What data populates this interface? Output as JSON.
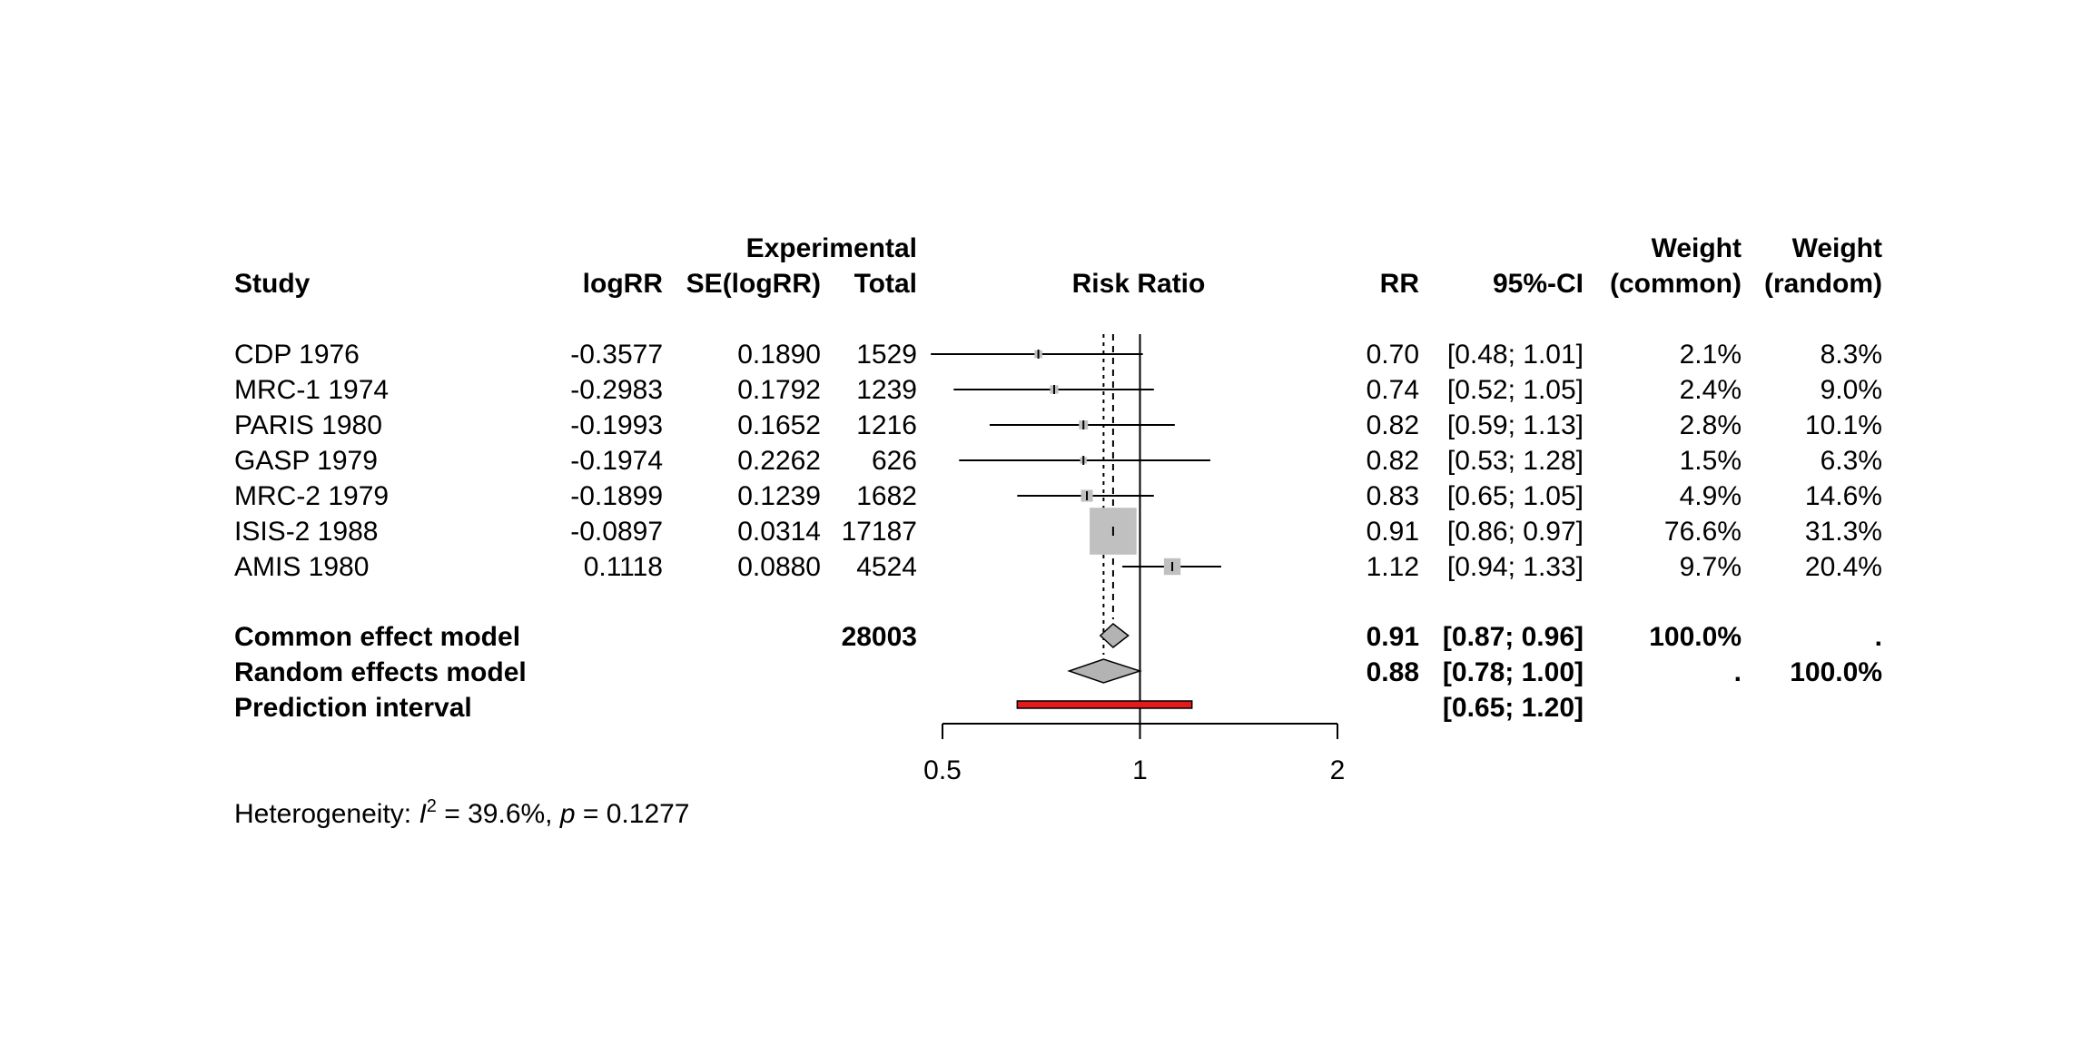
{
  "header": {
    "study": "Study",
    "logrr": "logRR",
    "se": "SE(logRR)",
    "experimental": "Experimental",
    "total": "Total",
    "risk_ratio": "Risk Ratio",
    "rr": "RR",
    "ci": "95%-CI",
    "weight": "Weight",
    "common": "(common)",
    "random": "(random)"
  },
  "studies": [
    {
      "name": "CDP 1976",
      "logrr": "-0.3577",
      "se": "0.1890",
      "total": "1529",
      "rr": "0.70",
      "ci": "[0.48; 1.01]",
      "w_common": "2.1%",
      "w_random": "8.3%"
    },
    {
      "name": "MRC-1 1974",
      "logrr": "-0.2983",
      "se": "0.1792",
      "total": "1239",
      "rr": "0.74",
      "ci": "[0.52; 1.05]",
      "w_common": "2.4%",
      "w_random": "9.0%"
    },
    {
      "name": "PARIS 1980",
      "logrr": "-0.1993",
      "se": "0.1652",
      "total": "1216",
      "rr": "0.82",
      "ci": "[0.59; 1.13]",
      "w_common": "2.8%",
      "w_random": "10.1%"
    },
    {
      "name": "GASP 1979",
      "logrr": "-0.1974",
      "se": "0.2262",
      "total": "626",
      "rr": "0.82",
      "ci": "[0.53; 1.28]",
      "w_common": "1.5%",
      "w_random": "6.3%"
    },
    {
      "name": "MRC-2 1979",
      "logrr": "-0.1899",
      "se": "0.1239",
      "total": "1682",
      "rr": "0.83",
      "ci": "[0.65; 1.05]",
      "w_common": "4.9%",
      "w_random": "14.6%"
    },
    {
      "name": "ISIS-2 1988",
      "logrr": "-0.0897",
      "se": "0.0314",
      "total": "17187",
      "rr": "0.91",
      "ci": "[0.86; 0.97]",
      "w_common": "76.6%",
      "w_random": "31.3%"
    },
    {
      "name": "AMIS 1980",
      "logrr": "0.1118",
      "se": "0.0880",
      "total": "4524",
      "rr": "1.12",
      "ci": "[0.94; 1.33]",
      "w_common": "9.7%",
      "w_random": "20.4%"
    }
  ],
  "summary": {
    "common": {
      "label": "Common effect model",
      "total": "28003",
      "rr": "0.91",
      "ci": "[0.87; 0.96]",
      "w_common": "100.0%",
      "w_random": "."
    },
    "random": {
      "label": "Random effects model",
      "total": "",
      "rr": "0.88",
      "ci": "[0.78; 1.00]",
      "w_common": ".",
      "w_random": "100.0%"
    },
    "prediction": {
      "label": "Prediction interval",
      "ci": "[0.65; 1.20]"
    }
  },
  "heterogeneity": {
    "prefix": "Heterogeneity: ",
    "i2_symbol": "I",
    "i2_sup": "2",
    "i2_value": " = 39.6%, ",
    "p_symbol": "p",
    "p_value": " = 0.1277"
  },
  "colors": {
    "square": "#c0c0c0",
    "diamond": "#b3b3b3",
    "prediction": "#e31a1c"
  },
  "chart_data": {
    "type": "forest",
    "xscale": "log",
    "xlim": [
      0.5,
      2
    ],
    "xticks": [
      0.5,
      1,
      2
    ],
    "tick_labels": [
      "0.5",
      "1",
      "2"
    ],
    "reference_line": 1,
    "studies": [
      {
        "name": "CDP 1976",
        "rr": 0.7,
        "lower": 0.48,
        "upper": 1.01,
        "weight_common": 2.1
      },
      {
        "name": "MRC-1 1974",
        "rr": 0.74,
        "lower": 0.52,
        "upper": 1.05,
        "weight_common": 2.4
      },
      {
        "name": "PARIS 1980",
        "rr": 0.82,
        "lower": 0.59,
        "upper": 1.13,
        "weight_common": 2.8
      },
      {
        "name": "GASP 1979",
        "rr": 0.82,
        "lower": 0.53,
        "upper": 1.28,
        "weight_common": 1.5
      },
      {
        "name": "MRC-2 1979",
        "rr": 0.83,
        "lower": 0.65,
        "upper": 1.05,
        "weight_common": 4.9
      },
      {
        "name": "ISIS-2 1988",
        "rr": 0.91,
        "lower": 0.86,
        "upper": 0.97,
        "weight_common": 76.6
      },
      {
        "name": "AMIS 1980",
        "rr": 1.12,
        "lower": 0.94,
        "upper": 1.33,
        "weight_common": 9.7
      }
    ],
    "common_effect": {
      "rr": 0.91,
      "lower": 0.87,
      "upper": 0.96
    },
    "random_effects": {
      "rr": 0.88,
      "lower": 0.78,
      "upper": 1.0
    },
    "prediction_interval": {
      "lower": 0.65,
      "upper": 1.2
    }
  }
}
